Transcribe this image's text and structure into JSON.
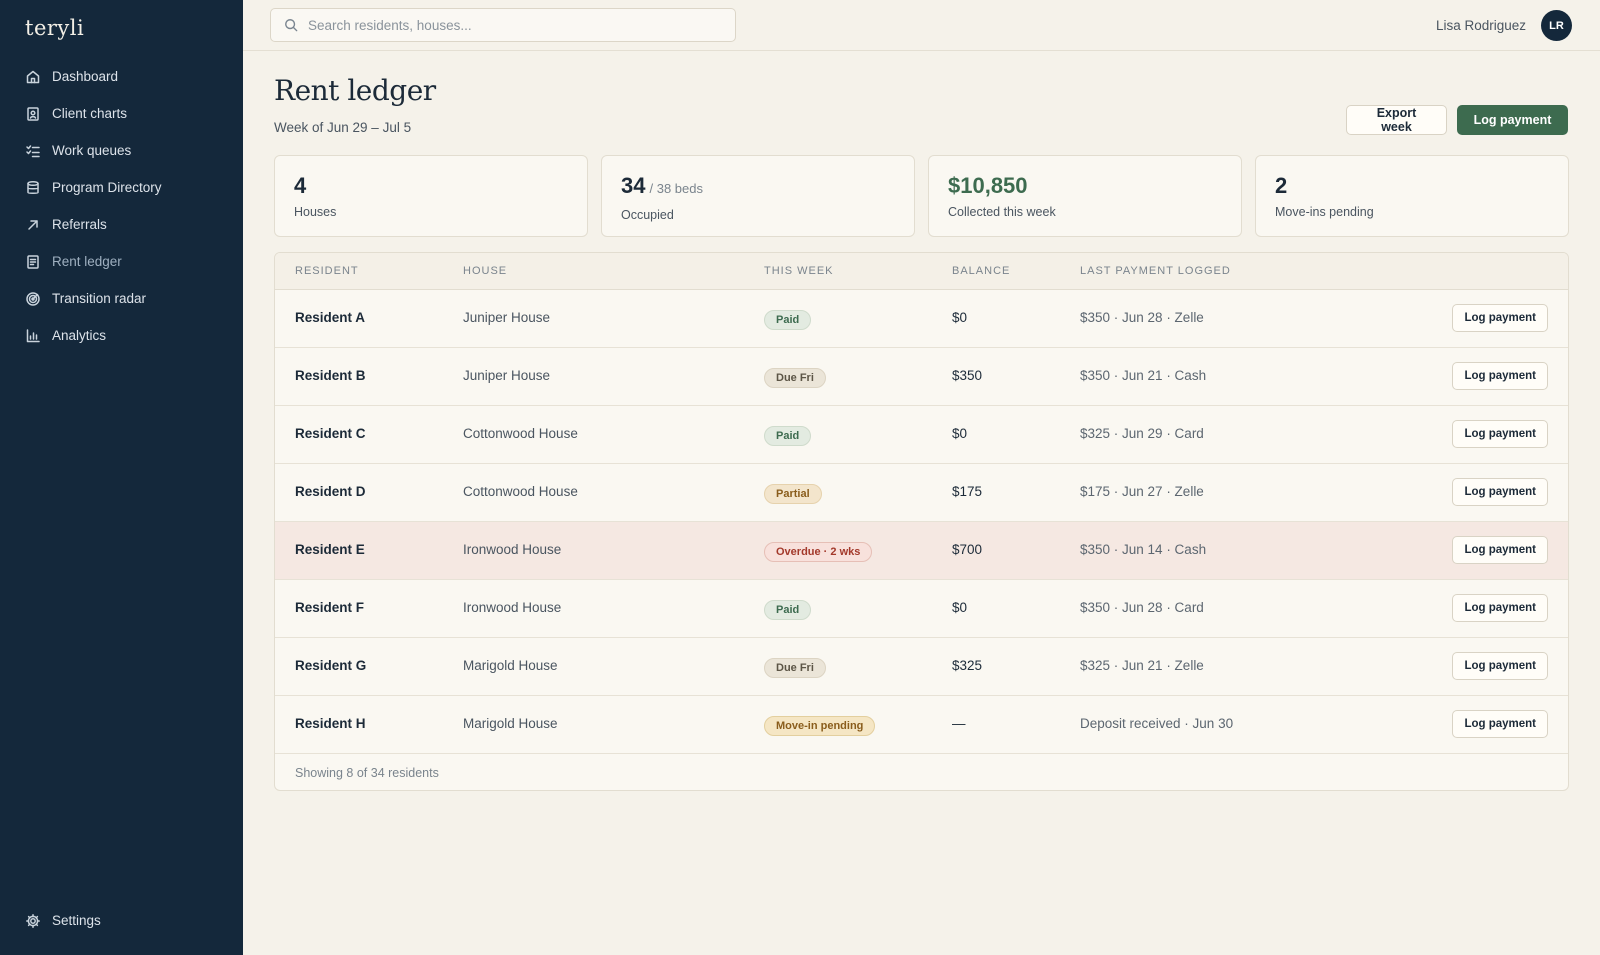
{
  "app": {
    "logo": "teryli"
  },
  "sidebar": {
    "items": [
      {
        "label": "Dashboard",
        "icon": "home-icon"
      },
      {
        "label": "Client charts",
        "icon": "client-chart-icon"
      },
      {
        "label": "Work queues",
        "icon": "checklist-icon"
      },
      {
        "label": "Program Directory",
        "icon": "database-icon"
      },
      {
        "label": "Referrals",
        "icon": "arrow-up-right-icon"
      },
      {
        "label": "Rent ledger",
        "icon": "ledger-icon",
        "active": true
      },
      {
        "label": "Transition radar",
        "icon": "radar-icon"
      },
      {
        "label": "Analytics",
        "icon": "bar-chart-icon"
      }
    ],
    "settings": {
      "label": "Settings",
      "icon": "gear-icon"
    }
  },
  "topbar": {
    "search": {
      "placeholder": "Search residents, houses...",
      "value": ""
    },
    "user": {
      "name": "Lisa Rodriguez",
      "initials": "LR"
    }
  },
  "page": {
    "title": "Rent ledger",
    "subtitle": "Week of Jun 29 – Jul 5",
    "export_label": "Export week",
    "log_label": "Log payment"
  },
  "stats": [
    {
      "value": "4",
      "extra": "",
      "label": "Houses"
    },
    {
      "value": "34",
      "extra": "/ 38 beds",
      "label": "Occupied"
    },
    {
      "value": "$10,850",
      "extra": "",
      "label": "Collected this week",
      "accent": "#3d6b4f"
    },
    {
      "value": "2",
      "extra": "",
      "label": "Move-ins pending"
    }
  ],
  "table": {
    "headers": {
      "resident": "RESIDENT",
      "house": "HOUSE",
      "week": "THIS WEEK",
      "balance": "BALANCE",
      "last": "LAST PAYMENT LOGGED"
    },
    "rows": [
      {
        "resident": "Resident A",
        "house": "Juniper House",
        "status": "Paid",
        "status_type": "paid",
        "balance": "$0",
        "last": "$350 · Jun 28 · Zelle",
        "action": "Log payment"
      },
      {
        "resident": "Resident B",
        "house": "Juniper House",
        "status": "Due Fri",
        "status_type": "due",
        "balance": "$350",
        "last": "$350 · Jun 21 · Cash",
        "action": "Log payment"
      },
      {
        "resident": "Resident C",
        "house": "Cottonwood House",
        "status": "Paid",
        "status_type": "paid",
        "balance": "$0",
        "last": "$325 · Jun 29 · Card",
        "action": "Log payment"
      },
      {
        "resident": "Resident D",
        "house": "Cottonwood House",
        "status": "Partial",
        "status_type": "partial",
        "balance": "$175",
        "last": "$175 · Jun 27 · Zelle",
        "action": "Log payment"
      },
      {
        "resident": "Resident E",
        "house": "Ironwood House",
        "status": "Overdue · 2 wks",
        "status_type": "overdue",
        "balance": "$700",
        "last": "$350 · Jun 14 · Cash",
        "action": "Log payment"
      },
      {
        "resident": "Resident F",
        "house": "Ironwood House",
        "status": "Paid",
        "status_type": "paid",
        "balance": "$0",
        "last": "$350 · Jun 28 · Card",
        "action": "Log payment"
      },
      {
        "resident": "Resident G",
        "house": "Marigold House",
        "status": "Due Fri",
        "status_type": "due",
        "balance": "$325",
        "last": "$325 · Jun 21 · Zelle",
        "action": "Log payment"
      },
      {
        "resident": "Resident H",
        "house": "Marigold House",
        "status": "Move-in pending",
        "status_type": "pending",
        "balance": "—",
        "last": "Deposit received · Jun 30",
        "action": "Log payment"
      }
    ],
    "footer": "Showing 8 of 34 residents"
  },
  "colors": {
    "sidebar": "#14283b",
    "accent_green": "#3d6b4f",
    "background": "#f5f2ea",
    "overdue": "#a3392b"
  }
}
